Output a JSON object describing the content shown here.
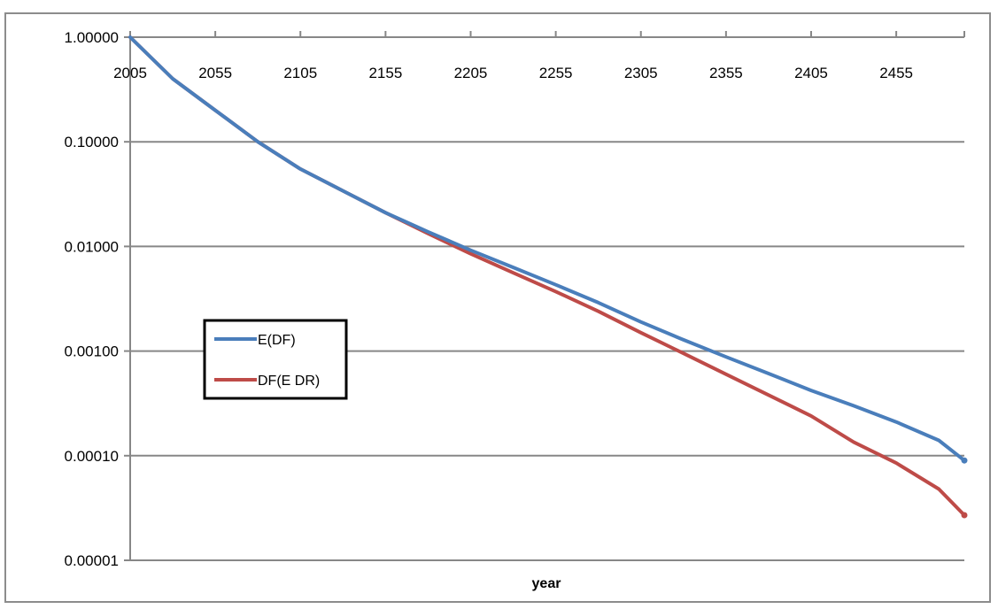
{
  "chart_data": {
    "type": "line",
    "title": "",
    "xlabel": "year",
    "ylabel": "",
    "yscale": "log",
    "ylim": [
      1e-05,
      1.0
    ],
    "xlim": [
      2005,
      2495
    ],
    "y_tick_labels": [
      "1.00000",
      "0.10000",
      "0.01000",
      "0.00100",
      "0.00010",
      "0.00001"
    ],
    "y_tick_values": [
      1,
      0.1,
      0.01,
      0.001,
      0.0001,
      1e-05
    ],
    "x_tick_labels": [
      "2005",
      "2055",
      "2105",
      "2155",
      "2205",
      "2255",
      "2305",
      "2355",
      "2405",
      "2455"
    ],
    "x_tick_values": [
      2005,
      2055,
      2105,
      2155,
      2205,
      2255,
      2305,
      2355,
      2405,
      2455
    ],
    "grid": true,
    "legend_position": "center-left",
    "x": [
      2005,
      2030,
      2055,
      2080,
      2105,
      2130,
      2155,
      2180,
      2205,
      2230,
      2255,
      2280,
      2305,
      2330,
      2355,
      2380,
      2405,
      2430,
      2455,
      2480,
      2495
    ],
    "series": [
      {
        "name": "E(DF)",
        "color": "#4a7ebb",
        "values": [
          1.0,
          0.4,
          0.2,
          0.1,
          0.055,
          0.034,
          0.021,
          0.0138,
          0.0092,
          0.0063,
          0.0043,
          0.0029,
          0.0019,
          0.00128,
          0.00088,
          0.00061,
          0.00042,
          0.0003,
          0.00021,
          0.00014,
          9e-05
        ]
      },
      {
        "name": "DF(E DR)",
        "color": "#be4b48",
        "values": [
          1.0,
          0.4,
          0.2,
          0.1,
          0.055,
          0.034,
          0.021,
          0.0133,
          0.0085,
          0.0056,
          0.0037,
          0.0024,
          0.0015,
          0.00095,
          0.0006,
          0.00038,
          0.00024,
          0.000135,
          8.5e-05,
          4.8e-05,
          2.7e-05
        ]
      }
    ]
  }
}
